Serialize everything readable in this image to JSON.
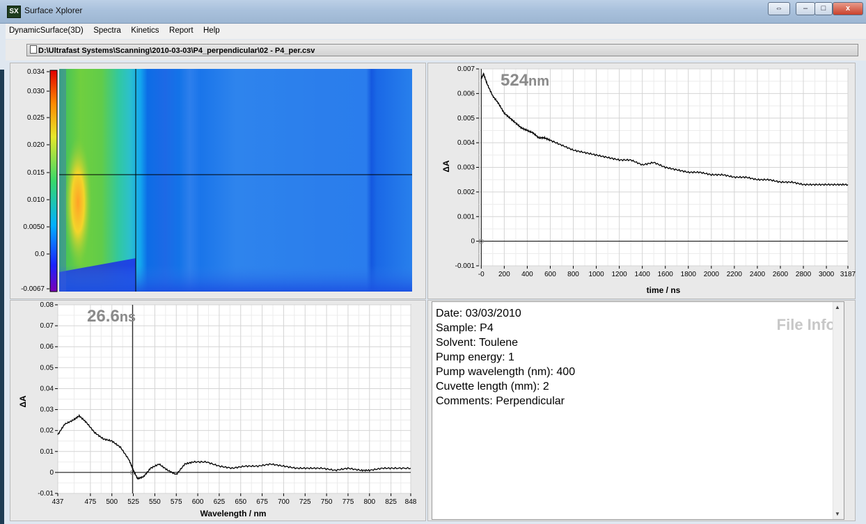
{
  "window": {
    "title": "Surface Xplorer",
    "icon_text": "SX",
    "maximize_hint": "⇔",
    "min_label": "–",
    "max_label": "□",
    "close_label": "x"
  },
  "menu": [
    "DynamicSurface(3D)",
    "Spectra",
    "Kinetics",
    "Report",
    "Help"
  ],
  "file_path": "D:\\Ultrafast Systems\\Scanning\\2010-03-03\\P4_perpendicular\\02 - P4_per.csv",
  "surface": {
    "y_ticks": [
      "0.034",
      "0.030",
      "0.025",
      "0.020",
      "0.015",
      "0.010",
      "0.0050",
      "0.0",
      "-0.0067"
    ],
    "colormap": "jet",
    "cursor_wavelength_nm": 524,
    "cursor_time_ns": 26.6
  },
  "kinetics": {
    "label_value": "524",
    "label_unit": "nm",
    "y_ticks": [
      "0.007",
      "0.006",
      "0.005",
      "0.004",
      "0.003",
      "0.002",
      "0.001",
      "0",
      "-0.001"
    ],
    "x_ticks": [
      "-0",
      "200",
      "400",
      "600",
      "800",
      "1000",
      "1200",
      "1400",
      "1600",
      "1800",
      "2000",
      "2200",
      "2400",
      "2600",
      "2800",
      "3000",
      "3187"
    ],
    "xlabel": "time / ns",
    "ylabel": "ΔA"
  },
  "spectrum": {
    "label_value": "26.6",
    "label_unit": "ns",
    "y_ticks": [
      "0.08",
      "0.07",
      "0.06",
      "0.05",
      "0.04",
      "0.03",
      "0.02",
      "0.01",
      "0",
      "-0.01"
    ],
    "x_ticks": [
      "437",
      "475",
      "500",
      "525",
      "550",
      "575",
      "600",
      "625",
      "650",
      "675",
      "700",
      "725",
      "750",
      "775",
      "800",
      "825",
      "848"
    ],
    "xlabel": "Wavelength / nm",
    "ylabel": "ΔA"
  },
  "chart_data": [
    {
      "type": "line",
      "title": "524nm",
      "xlabel": "time / ns",
      "ylabel": "ΔA",
      "xlim": [
        -20,
        3187
      ],
      "ylim": [
        -0.001,
        0.007
      ],
      "series": [
        {
          "x": [
            0,
            20,
            50,
            100,
            150,
            200,
            250,
            300,
            350,
            400,
            450,
            500,
            550,
            600,
            700,
            800,
            900,
            1000,
            1100,
            1200,
            1300,
            1400,
            1500,
            1600,
            1700,
            1800,
            1900,
            2000,
            2100,
            2200,
            2300,
            2400,
            2500,
            2600,
            2700,
            2800,
            2900,
            3000,
            3100,
            3187
          ],
          "y": [
            0.0066,
            0.0068,
            0.0064,
            0.0059,
            0.0056,
            0.0052,
            0.005,
            0.0048,
            0.0046,
            0.0045,
            0.0044,
            0.0042,
            0.0042,
            0.0041,
            0.0039,
            0.0037,
            0.0036,
            0.0035,
            0.0034,
            0.0033,
            0.0033,
            0.0031,
            0.0032,
            0.003,
            0.0029,
            0.0028,
            0.0028,
            0.0027,
            0.0027,
            0.0026,
            0.0026,
            0.0025,
            0.0025,
            0.0024,
            0.0024,
            0.0023,
            0.0023,
            0.0023,
            0.0023,
            0.0023
          ]
        }
      ]
    },
    {
      "type": "line",
      "title": "26.6ns",
      "xlabel": "Wavelength / nm",
      "ylabel": "ΔA",
      "xlim": [
        437,
        848
      ],
      "ylim": [
        -0.01,
        0.08
      ],
      "series": [
        {
          "x": [
            437,
            445,
            455,
            462,
            470,
            480,
            490,
            500,
            510,
            520,
            525,
            530,
            537,
            545,
            555,
            565,
            575,
            585,
            595,
            610,
            625,
            640,
            655,
            670,
            685,
            700,
            715,
            730,
            745,
            760,
            775,
            790,
            800,
            815,
            830,
            848
          ],
          "y": [
            0.018,
            0.023,
            0.025,
            0.027,
            0.024,
            0.019,
            0.016,
            0.015,
            0.012,
            0.006,
            0.001,
            -0.003,
            -0.002,
            0.002,
            0.004,
            0.001,
            -0.001,
            0.004,
            0.005,
            0.005,
            0.003,
            0.002,
            0.003,
            0.003,
            0.004,
            0.003,
            0.002,
            0.002,
            0.002,
            0.001,
            0.002,
            0.001,
            0.001,
            0.002,
            0.002,
            0.002
          ]
        }
      ]
    }
  ],
  "file_info": {
    "title": "File Info",
    "lines": [
      "Date: 03/03/2010",
      "Sample: P4",
      "Solvent: Toulene",
      "Pump energy: 1",
      "Pump wavelength (nm): 400",
      "Cuvette length (mm): 2",
      "Comments: Perpendicular"
    ]
  }
}
